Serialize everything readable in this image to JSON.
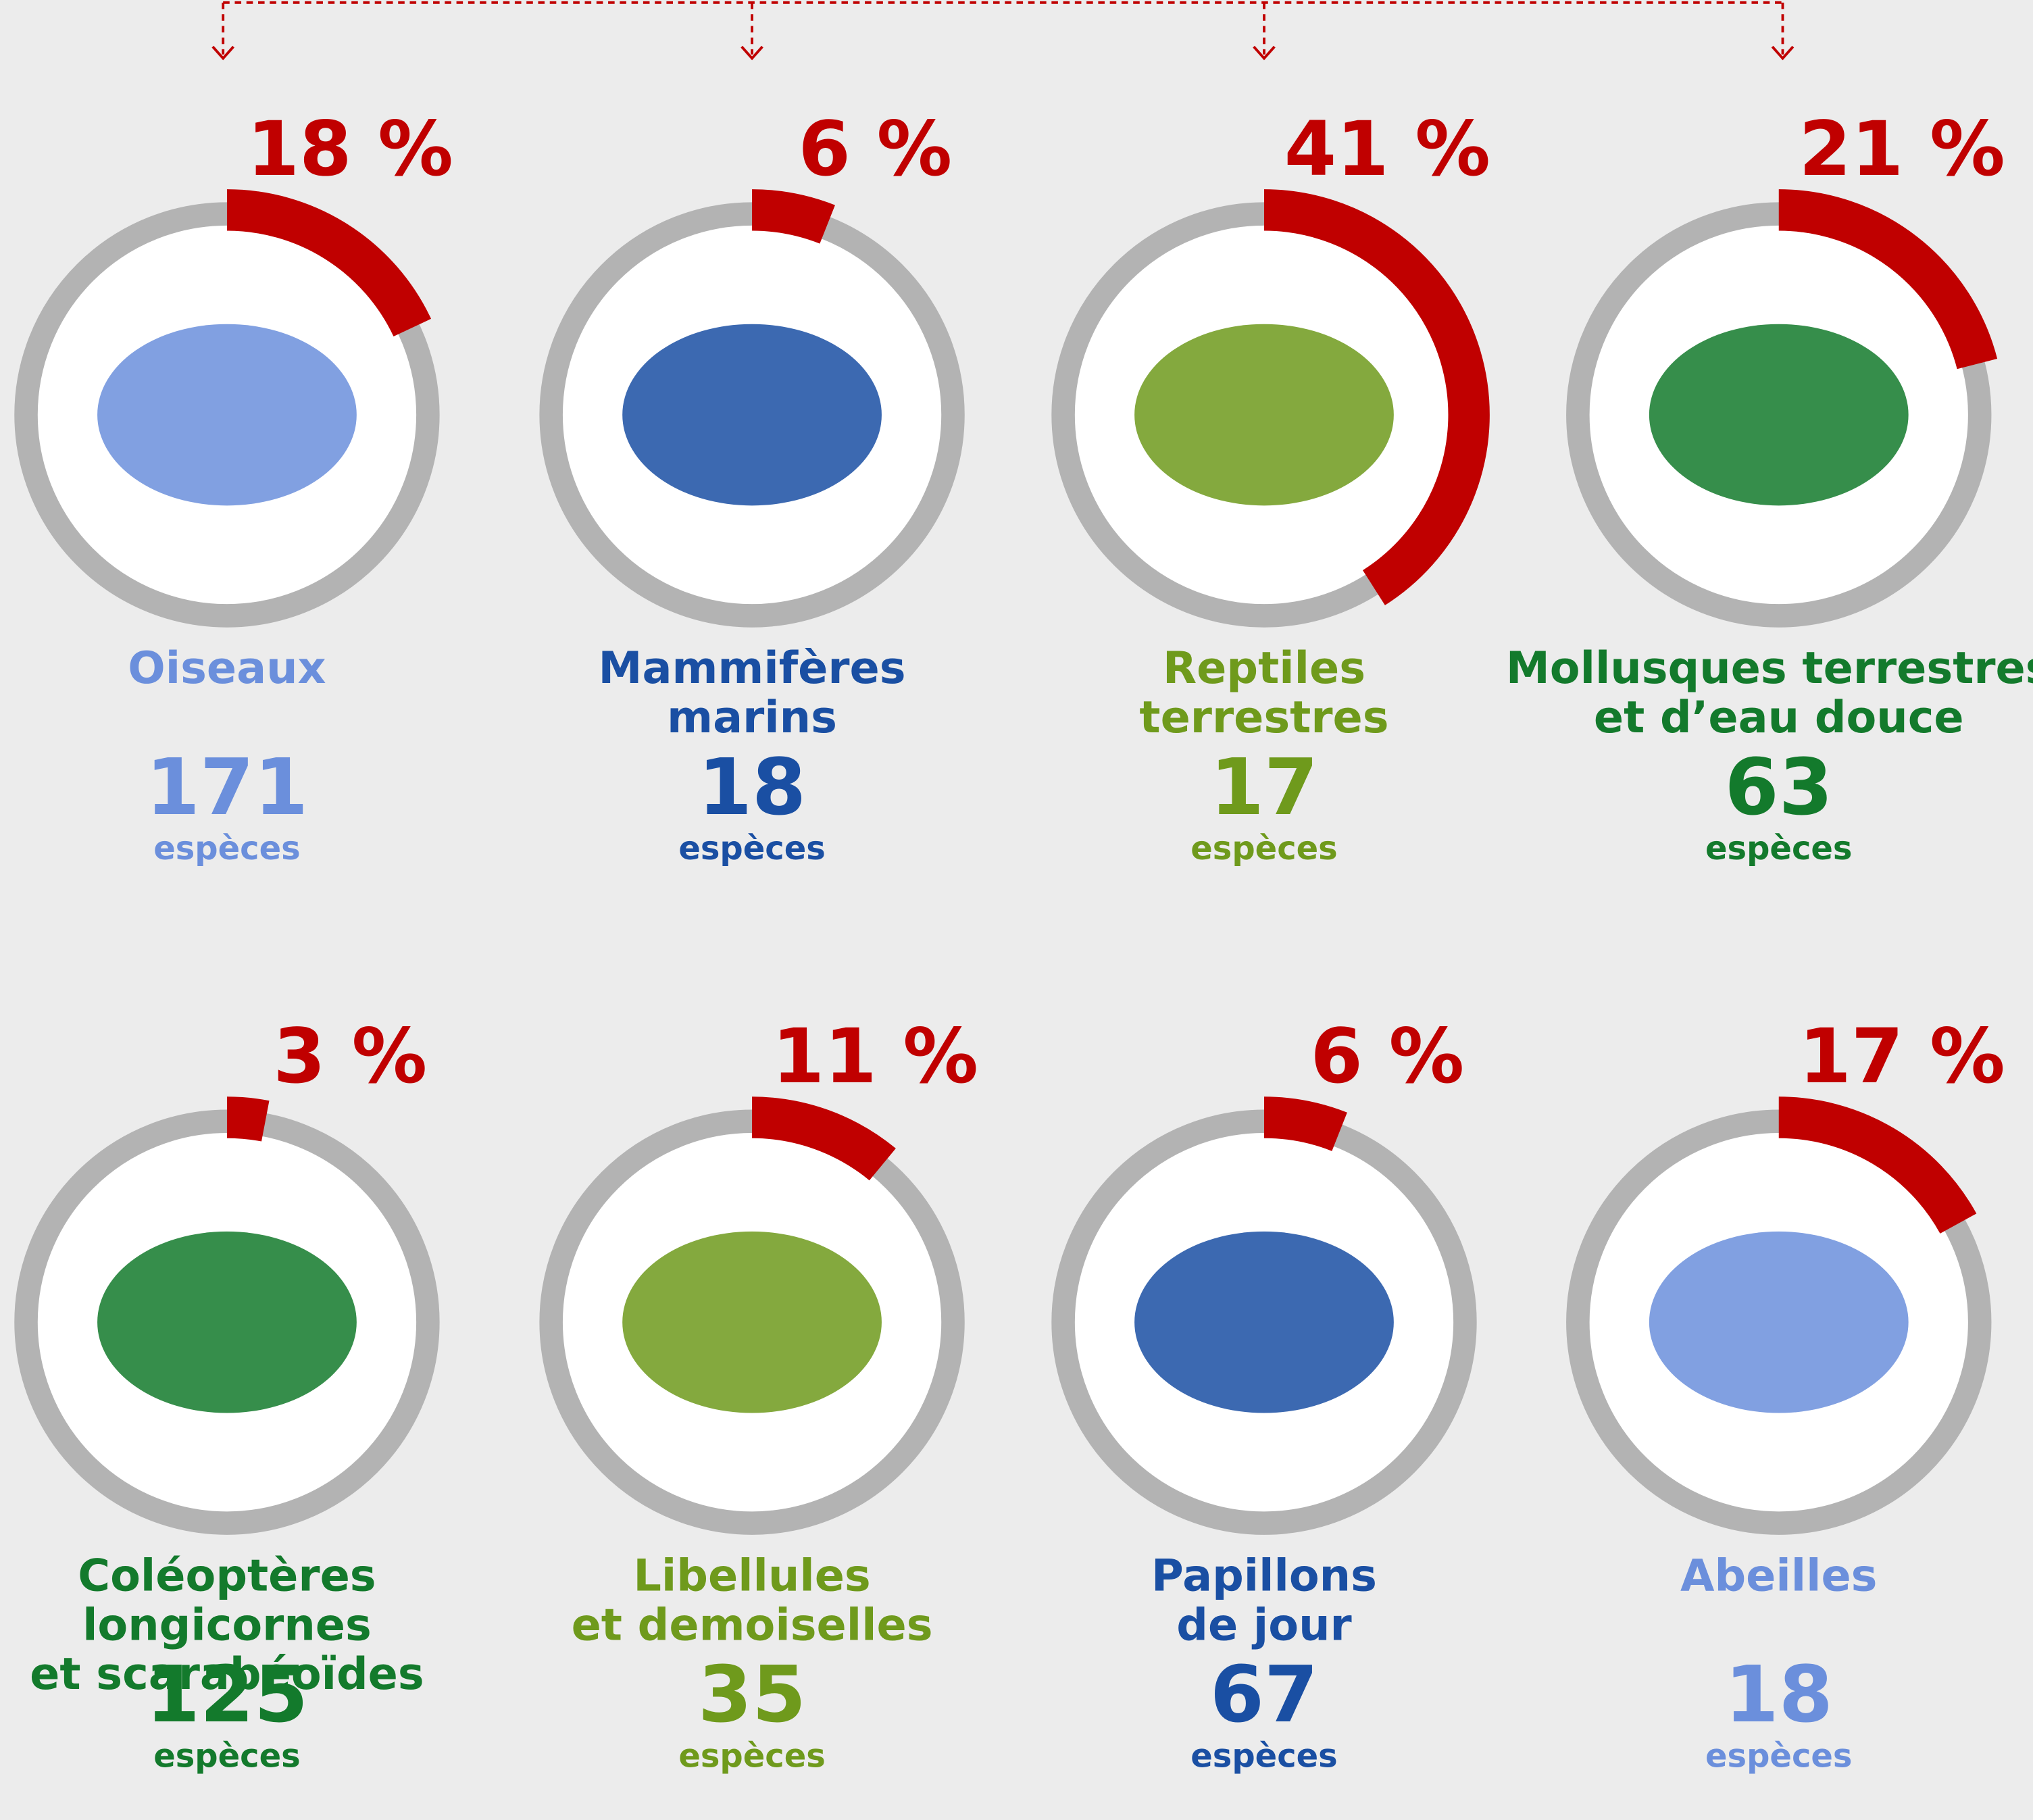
{
  "chart_data": {
    "type": "ring",
    "categories": [
      [
        "Oiseaux"
      ],
      [
        "Mammifères",
        "marins"
      ],
      [
        "Reptiles",
        "terrestres"
      ],
      [
        "Mollusques terrestres",
        "et d’eau douce"
      ],
      [
        "Coléoptères",
        "longicornes",
        "et scarabéoïdes"
      ],
      [
        "Libellules",
        "et demoiselles"
      ],
      [
        "Papillons",
        "de jour"
      ],
      [
        "Abeilles"
      ]
    ],
    "values": [
      18,
      6,
      41,
      21,
      3,
      11,
      6,
      17
    ],
    "value_labels": [
      "18 %",
      "6 %",
      "41 %",
      "21 %",
      "3 %",
      "11 %",
      "6 %",
      "17 %"
    ],
    "counts": [
      171,
      18,
      17,
      63,
      125,
      35,
      67,
      18
    ],
    "count_unit": "espèces",
    "colors": [
      "#6b8fdc",
      "#1a4fa3",
      "#6f9a1c",
      "#137a2c",
      "#137a2c",
      "#6f9a1c",
      "#1a4fa3",
      "#6b8fdc"
    ],
    "value_color": "#c00000",
    "ring_color": "#b3b3b3",
    "ylim": [
      0,
      100
    ]
  }
}
